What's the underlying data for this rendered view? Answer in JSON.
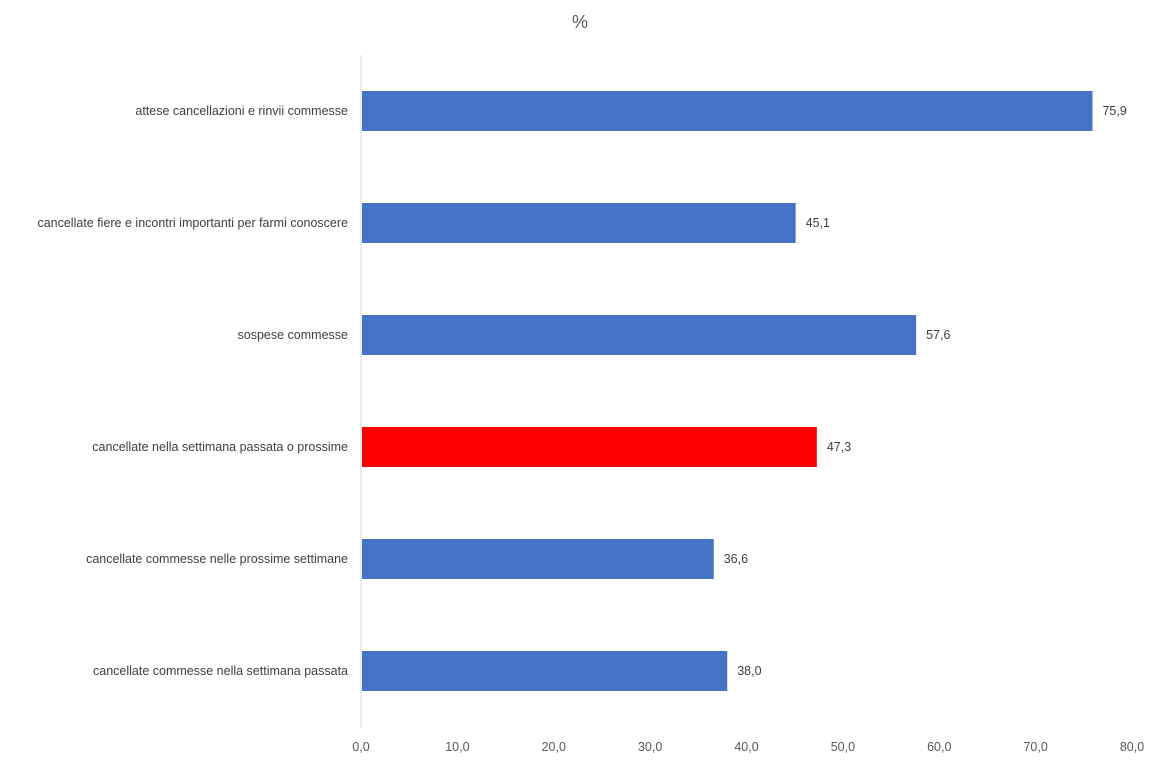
{
  "chart_data": {
    "type": "bar",
    "orientation": "horizontal",
    "title": "%",
    "categories": [
      "attese cancellazioni e rinvii commesse",
      "cancellate fiere e incontri importanti per farmi conoscere",
      "sospese commesse",
      "cancellate nella settimana passata o prossime",
      "cancellate commesse nelle prossime settimane",
      "cancellate commesse nella settimana passata"
    ],
    "values": [
      75.9,
      45.1,
      57.6,
      47.3,
      36.6,
      38.0
    ],
    "value_labels": [
      "75,9",
      "45,1",
      "57,6",
      "47,3",
      "36,6",
      "38,0"
    ],
    "bar_colors": [
      "#4472C4",
      "#4472C4",
      "#4472C4",
      "#FF0000",
      "#4472C4",
      "#4472C4"
    ],
    "xlim": [
      0,
      80
    ],
    "x_ticks": [
      0,
      10,
      20,
      30,
      40,
      50,
      60,
      70,
      80
    ],
    "x_tick_labels": [
      "0,0",
      "10,0",
      "20,0",
      "30,0",
      "40,0",
      "50,0",
      "60,0",
      "70,0",
      "80,0"
    ],
    "grid": false,
    "legend": "none"
  }
}
